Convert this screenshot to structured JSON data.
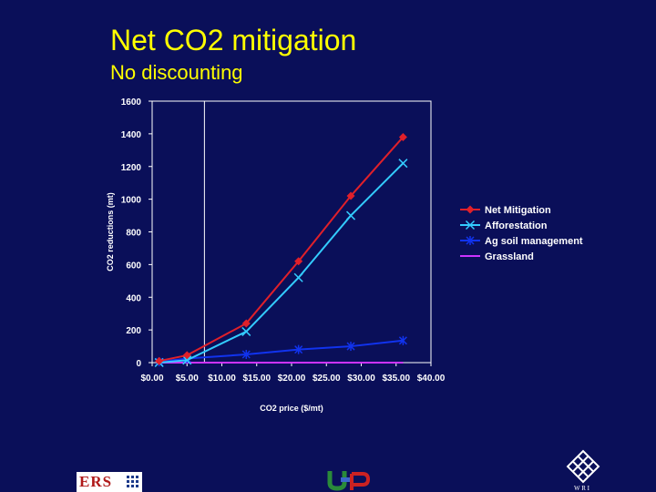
{
  "slide": {
    "title": "Net CO2 mitigation",
    "subtitle": "No discounting"
  },
  "chart_data": {
    "type": "line",
    "xlabel": "CO2 price ($/mt)",
    "ylabel": "CO2 reductions (mt)",
    "xlim": [
      0,
      40
    ],
    "ylim": [
      0,
      1600
    ],
    "x_ticks": [
      0,
      5,
      10,
      15,
      20,
      25,
      30,
      35,
      40
    ],
    "x_tick_labels": [
      "$0.00",
      "$5.00",
      "$10.00",
      "$15.00",
      "$20.00",
      "$25.00",
      "$30.00",
      "$35.00",
      "$40.00"
    ],
    "y_ticks": [
      0,
      200,
      400,
      600,
      800,
      1000,
      1200,
      1400,
      1600
    ],
    "y_tick_labels": [
      "0",
      "200",
      "400",
      "600",
      "800",
      "1000",
      "1200",
      "1400",
      "1600"
    ],
    "vertical_gridline_x": 7.5,
    "legend_position": "right",
    "series": [
      {
        "name": "Net Mitigation",
        "color": "#e0202a",
        "marker": "diamond",
        "x": [
          1,
          5,
          13.5,
          21,
          28.5,
          36
        ],
        "y": [
          10,
          45,
          240,
          620,
          1020,
          1380
        ]
      },
      {
        "name": "Afforestation",
        "color": "#33ccff",
        "marker": "x",
        "x": [
          1,
          5,
          13.5,
          21,
          28.5,
          36
        ],
        "y": [
          0,
          15,
          190,
          520,
          900,
          1220
        ]
      },
      {
        "name": "Ag soil management",
        "color": "#1133ee",
        "marker": "star",
        "x": [
          1,
          5,
          13.5,
          21,
          28.5,
          36
        ],
        "y": [
          5,
          25,
          50,
          80,
          100,
          135
        ]
      },
      {
        "name": "Grassland",
        "color": "#cc33ff",
        "marker": "none",
        "x": [
          1,
          5,
          13.5,
          21,
          28.5,
          36
        ],
        "y": [
          0,
          0,
          0,
          0,
          0,
          0
        ]
      }
    ]
  },
  "footer": {
    "ers_logo_text": "ERS",
    "wri_logo_text": "W R I"
  }
}
